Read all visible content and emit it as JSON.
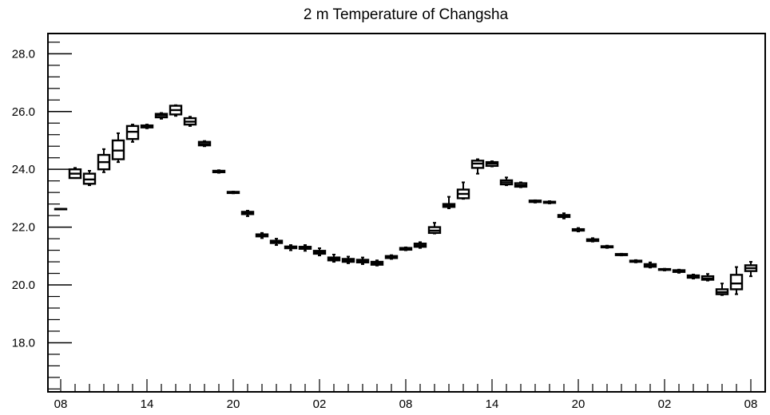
{
  "chart_data": {
    "type": "box",
    "title": "2 m Temperature of Changsha",
    "xlabel": "",
    "ylabel": "",
    "ylim": [
      16.3,
      28.7
    ],
    "y_ticks": [
      "18.0",
      "20.0",
      "22.0",
      "24.0",
      "26.0",
      "28.0"
    ],
    "y_minor_step": 0.4,
    "x_hours_range": [
      0,
      48
    ],
    "x_ticks": [
      {
        "hour": 0,
        "label": "08"
      },
      {
        "hour": 6,
        "label": "14"
      },
      {
        "hour": 12,
        "label": "20"
      },
      {
        "hour": 18,
        "label": "02"
      },
      {
        "hour": 24,
        "label": "08"
      },
      {
        "hour": 30,
        "label": "14"
      },
      {
        "hour": 36,
        "label": "20"
      },
      {
        "hour": 42,
        "label": "02"
      },
      {
        "hour": 48,
        "label": "08"
      }
    ],
    "series": [
      {
        "boxes": [
          {
            "hour": 0,
            "min": 22.63,
            "q1": 22.63,
            "median": 22.63,
            "q3": 22.63,
            "max": 22.63
          },
          {
            "hour": 1,
            "min": 23.7,
            "q1": 23.7,
            "median": 23.85,
            "q3": 24.0,
            "max": 24.05
          },
          {
            "hour": 2,
            "min": 23.45,
            "q1": 23.5,
            "median": 23.65,
            "q3": 23.85,
            "max": 23.95
          },
          {
            "hour": 3,
            "min": 23.9,
            "q1": 24.0,
            "median": 24.25,
            "q3": 24.5,
            "max": 24.7
          },
          {
            "hour": 4,
            "min": 24.25,
            "q1": 24.35,
            "median": 24.65,
            "q3": 25.0,
            "max": 25.25
          },
          {
            "hour": 5,
            "min": 24.95,
            "q1": 25.05,
            "median": 25.3,
            "q3": 25.5,
            "max": 25.55
          },
          {
            "hour": 6,
            "min": 25.42,
            "q1": 25.45,
            "median": 25.5,
            "q3": 25.52,
            "max": 25.55
          },
          {
            "hour": 7,
            "min": 25.75,
            "q1": 25.8,
            "median": 25.87,
            "q3": 25.92,
            "max": 25.95
          },
          {
            "hour": 8,
            "min": 25.85,
            "q1": 25.9,
            "median": 26.05,
            "q3": 26.2,
            "max": 26.22
          },
          {
            "hour": 9,
            "min": 25.5,
            "q1": 25.55,
            "median": 25.65,
            "q3": 25.77,
            "max": 25.82
          },
          {
            "hour": 10,
            "min": 24.8,
            "q1": 24.83,
            "median": 24.88,
            "q3": 24.95,
            "max": 24.98
          },
          {
            "hour": 11,
            "min": 23.88,
            "q1": 23.9,
            "median": 23.92,
            "q3": 23.95,
            "max": 23.97
          },
          {
            "hour": 12,
            "min": 23.17,
            "q1": 23.18,
            "median": 23.2,
            "q3": 23.22,
            "max": 23.23
          },
          {
            "hour": 13,
            "min": 22.38,
            "q1": 22.45,
            "median": 22.5,
            "q3": 22.53,
            "max": 22.57
          },
          {
            "hour": 14,
            "min": 21.62,
            "q1": 21.68,
            "median": 21.72,
            "q3": 21.75,
            "max": 21.8
          },
          {
            "hour": 15,
            "min": 21.38,
            "q1": 21.45,
            "median": 21.5,
            "q3": 21.53,
            "max": 21.6
          },
          {
            "hour": 16,
            "min": 21.2,
            "q1": 21.27,
            "median": 21.3,
            "q3": 21.33,
            "max": 21.38
          },
          {
            "hour": 17,
            "min": 21.18,
            "q1": 21.25,
            "median": 21.28,
            "q3": 21.32,
            "max": 21.38
          },
          {
            "hour": 18,
            "min": 21.02,
            "q1": 21.08,
            "median": 21.13,
            "q3": 21.18,
            "max": 21.27
          },
          {
            "hour": 19,
            "min": 20.8,
            "q1": 20.85,
            "median": 20.9,
            "q3": 20.95,
            "max": 21.05
          },
          {
            "hour": 20,
            "min": 20.75,
            "q1": 20.8,
            "median": 20.85,
            "q3": 20.9,
            "max": 20.98
          },
          {
            "hour": 21,
            "min": 20.72,
            "q1": 20.78,
            "median": 20.82,
            "q3": 20.87,
            "max": 20.95
          },
          {
            "hour": 22,
            "min": 20.67,
            "q1": 20.7,
            "median": 20.75,
            "q3": 20.8,
            "max": 20.85
          },
          {
            "hour": 23,
            "min": 20.9,
            "q1": 20.93,
            "median": 20.96,
            "q3": 21.0,
            "max": 21.03
          },
          {
            "hour": 24,
            "min": 21.2,
            "q1": 21.22,
            "median": 21.25,
            "q3": 21.28,
            "max": 21.3
          },
          {
            "hour": 25,
            "min": 21.28,
            "q1": 21.32,
            "median": 21.37,
            "q3": 21.43,
            "max": 21.48
          },
          {
            "hour": 26,
            "min": 21.78,
            "q1": 21.8,
            "median": 21.88,
            "q3": 22.0,
            "max": 22.15
          },
          {
            "hour": 27,
            "min": 22.65,
            "q1": 22.7,
            "median": 22.75,
            "q3": 22.8,
            "max": 23.05
          },
          {
            "hour": 28,
            "min": 22.98,
            "q1": 23.0,
            "median": 23.15,
            "q3": 23.3,
            "max": 23.55
          },
          {
            "hour": 29,
            "min": 23.85,
            "q1": 24.05,
            "median": 24.2,
            "q3": 24.3,
            "max": 24.35
          },
          {
            "hour": 30,
            "min": 24.1,
            "q1": 24.12,
            "median": 24.2,
            "q3": 24.25,
            "max": 24.28
          },
          {
            "hour": 31,
            "min": 23.45,
            "q1": 23.48,
            "median": 23.55,
            "q3": 23.62,
            "max": 23.72
          },
          {
            "hour": 32,
            "min": 23.38,
            "q1": 23.4,
            "median": 23.45,
            "q3": 23.52,
            "max": 23.55
          },
          {
            "hour": 33,
            "min": 22.85,
            "q1": 22.87,
            "median": 22.9,
            "q3": 22.92,
            "max": 22.93
          },
          {
            "hour": 34,
            "min": 22.82,
            "q1": 22.84,
            "median": 22.86,
            "q3": 22.88,
            "max": 22.9
          },
          {
            "hour": 35,
            "min": 22.3,
            "q1": 22.35,
            "median": 22.38,
            "q3": 22.42,
            "max": 22.48
          },
          {
            "hour": 36,
            "min": 21.85,
            "q1": 21.88,
            "median": 21.9,
            "q3": 21.93,
            "max": 21.97
          },
          {
            "hour": 37,
            "min": 21.5,
            "q1": 21.52,
            "median": 21.55,
            "q3": 21.58,
            "max": 21.62
          },
          {
            "hour": 38,
            "min": 21.28,
            "q1": 21.3,
            "median": 21.32,
            "q3": 21.34,
            "max": 21.36
          },
          {
            "hour": 39,
            "min": 21.02,
            "q1": 21.03,
            "median": 21.05,
            "q3": 21.07,
            "max": 21.08
          },
          {
            "hour": 40,
            "min": 20.78,
            "q1": 20.8,
            "median": 20.82,
            "q3": 20.84,
            "max": 20.86
          },
          {
            "hour": 41,
            "min": 20.6,
            "q1": 20.63,
            "median": 20.67,
            "q3": 20.72,
            "max": 20.78
          },
          {
            "hour": 42,
            "min": 20.5,
            "q1": 20.52,
            "median": 20.53,
            "q3": 20.55,
            "max": 20.56
          },
          {
            "hour": 43,
            "min": 20.42,
            "q1": 20.45,
            "median": 20.48,
            "q3": 20.51,
            "max": 20.53
          },
          {
            "hour": 44,
            "min": 20.22,
            "q1": 20.25,
            "median": 20.29,
            "q3": 20.33,
            "max": 20.36
          },
          {
            "hour": 45,
            "min": 20.15,
            "q1": 20.18,
            "median": 20.22,
            "q3": 20.3,
            "max": 20.38
          },
          {
            "hour": 46,
            "min": 19.65,
            "q1": 19.68,
            "median": 19.75,
            "q3": 19.85,
            "max": 20.05
          },
          {
            "hour": 47,
            "min": 19.68,
            "q1": 19.85,
            "median": 20.05,
            "q3": 20.35,
            "max": 20.62
          },
          {
            "hour": 48,
            "min": 20.3,
            "q1": 20.48,
            "median": 20.58,
            "q3": 20.68,
            "max": 20.8
          }
        ]
      }
    ]
  }
}
